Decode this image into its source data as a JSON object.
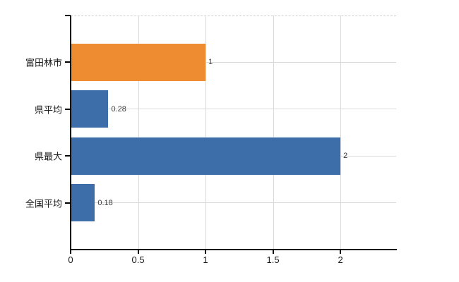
{
  "chart_data": {
    "type": "bar",
    "orientation": "horizontal",
    "title": "",
    "xlabel": "",
    "ylabel": "",
    "categories": [
      "富田林市",
      "県平均",
      "県最大",
      "全国平均"
    ],
    "values": [
      1,
      0.28,
      2,
      0.18
    ],
    "value_labels": [
      "1",
      "0.28",
      "2",
      "0.18"
    ],
    "bar_colors": [
      "#ee8c31",
      "#3e6eaa",
      "#3e6eaa",
      "#3e6eaa"
    ],
    "xlim": [
      0,
      2.413
    ],
    "xticks": [
      0,
      0.5,
      1,
      1.5,
      2
    ],
    "xtick_labels": [
      "0",
      "0.5",
      "1",
      "1.5",
      "2"
    ],
    "grid": true,
    "legend": false,
    "colors": {
      "background": "#ffffff",
      "grid": "#d9d9d9",
      "top_border": "#cfcfcf",
      "axis": "#000000",
      "tick_label": "#1a1a1a",
      "category_label": "#1a1a1a",
      "value_label": "#3c3c3c"
    }
  }
}
